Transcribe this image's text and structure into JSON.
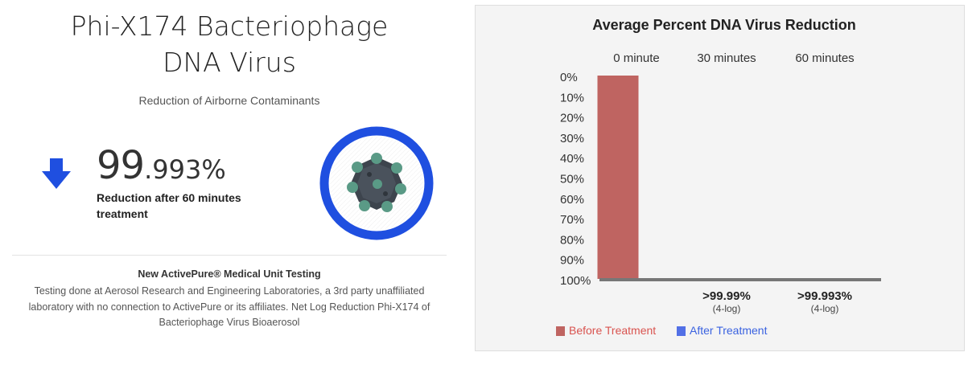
{
  "headline": {
    "title_line1": "Phi-X174 Bacteriophage",
    "title_line2": "DNA Virus",
    "subtitle": "Reduction of Airborne Contaminants"
  },
  "stat": {
    "integer_part": "99",
    "decimal_part": ".993%",
    "label": "Reduction after 60 minutes treatment",
    "icon": "arrow-down-icon",
    "ring_color": "#1f4fe0"
  },
  "testing": {
    "title": "New ActivePure® Medical Unit Testing",
    "body": "Testing done at Aerosol Research and Engineering Laboratories, a 3rd party unaffiliated laboratory with no connection to ActivePure or its affiliates. Net Log Reduction Phi-X174 of Bacteriophage Virus Bioaerosol"
  },
  "chart_data": {
    "type": "bar",
    "title": "Average Percent DNA Virus Reduction",
    "categories": [
      "0 minute",
      "30 minutes",
      "60 minutes"
    ],
    "y_ticks": [
      "0%",
      "10%",
      "20%",
      "30%",
      "40%",
      "50%",
      "60%",
      "70%",
      "80%",
      "90%",
      "100%"
    ],
    "y_axis_inverted": true,
    "ylim": [
      0,
      100
    ],
    "series": [
      {
        "name": "Before Treatment",
        "color": "#bf6461",
        "values": [
          100,
          null,
          null
        ]
      },
      {
        "name": "After Treatment",
        "color": "#5270e6",
        "values": [
          null,
          99.99,
          99.993
        ]
      }
    ],
    "bar_labels": [
      {
        "category": "30 minutes",
        "value": ">99.99%",
        "sub": "(4-log)"
      },
      {
        "category": "60 minutes",
        "value": ">99.993%",
        "sub": "(4-log)"
      }
    ],
    "legend": {
      "position": "bottom-left"
    },
    "legend_text_colors": {
      "Before Treatment": "#d9534f",
      "After Treatment": "#3a62e0"
    },
    "grid": false
  }
}
